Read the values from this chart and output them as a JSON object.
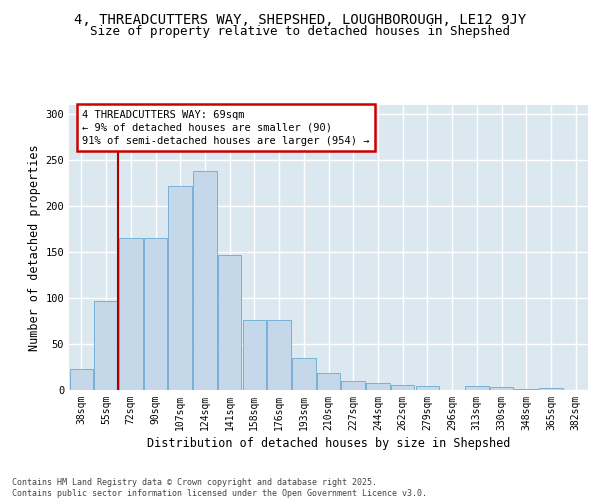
{
  "title_line1": "4, THREADCUTTERS WAY, SHEPSHED, LOUGHBOROUGH, LE12 9JY",
  "title_line2": "Size of property relative to detached houses in Shepshed",
  "xlabel": "Distribution of detached houses by size in Shepshed",
  "ylabel": "Number of detached properties",
  "categories": [
    "38sqm",
    "55sqm",
    "72sqm",
    "90sqm",
    "107sqm",
    "124sqm",
    "141sqm",
    "158sqm",
    "176sqm",
    "193sqm",
    "210sqm",
    "227sqm",
    "244sqm",
    "262sqm",
    "279sqm",
    "296sqm",
    "313sqm",
    "330sqm",
    "348sqm",
    "365sqm",
    "382sqm"
  ],
  "values": [
    23,
    97,
    165,
    165,
    222,
    238,
    147,
    76,
    76,
    35,
    19,
    10,
    8,
    5,
    4,
    0,
    4,
    3,
    1,
    2,
    0
  ],
  "bar_color": "#c5d8ea",
  "bar_edge_color": "#6aaad4",
  "bg_color": "#dce8f0",
  "grid_color": "#ffffff",
  "vline_color": "#aa0000",
  "annotation_text": "4 THREADCUTTERS WAY: 69sqm\n← 9% of detached houses are smaller (90)\n91% of semi-detached houses are larger (954) →",
  "annotation_box_edge_color": "#cc0000",
  "ylim": [
    0,
    310
  ],
  "yticks": [
    0,
    50,
    100,
    150,
    200,
    250,
    300
  ],
  "footer_text": "Contains HM Land Registry data © Crown copyright and database right 2025.\nContains public sector information licensed under the Open Government Licence v3.0.",
  "title_fontsize": 10,
  "subtitle_fontsize": 9,
  "axis_label_fontsize": 8.5,
  "tick_fontsize": 7,
  "annotation_fontsize": 7.5,
  "vline_xindex": 1.5
}
